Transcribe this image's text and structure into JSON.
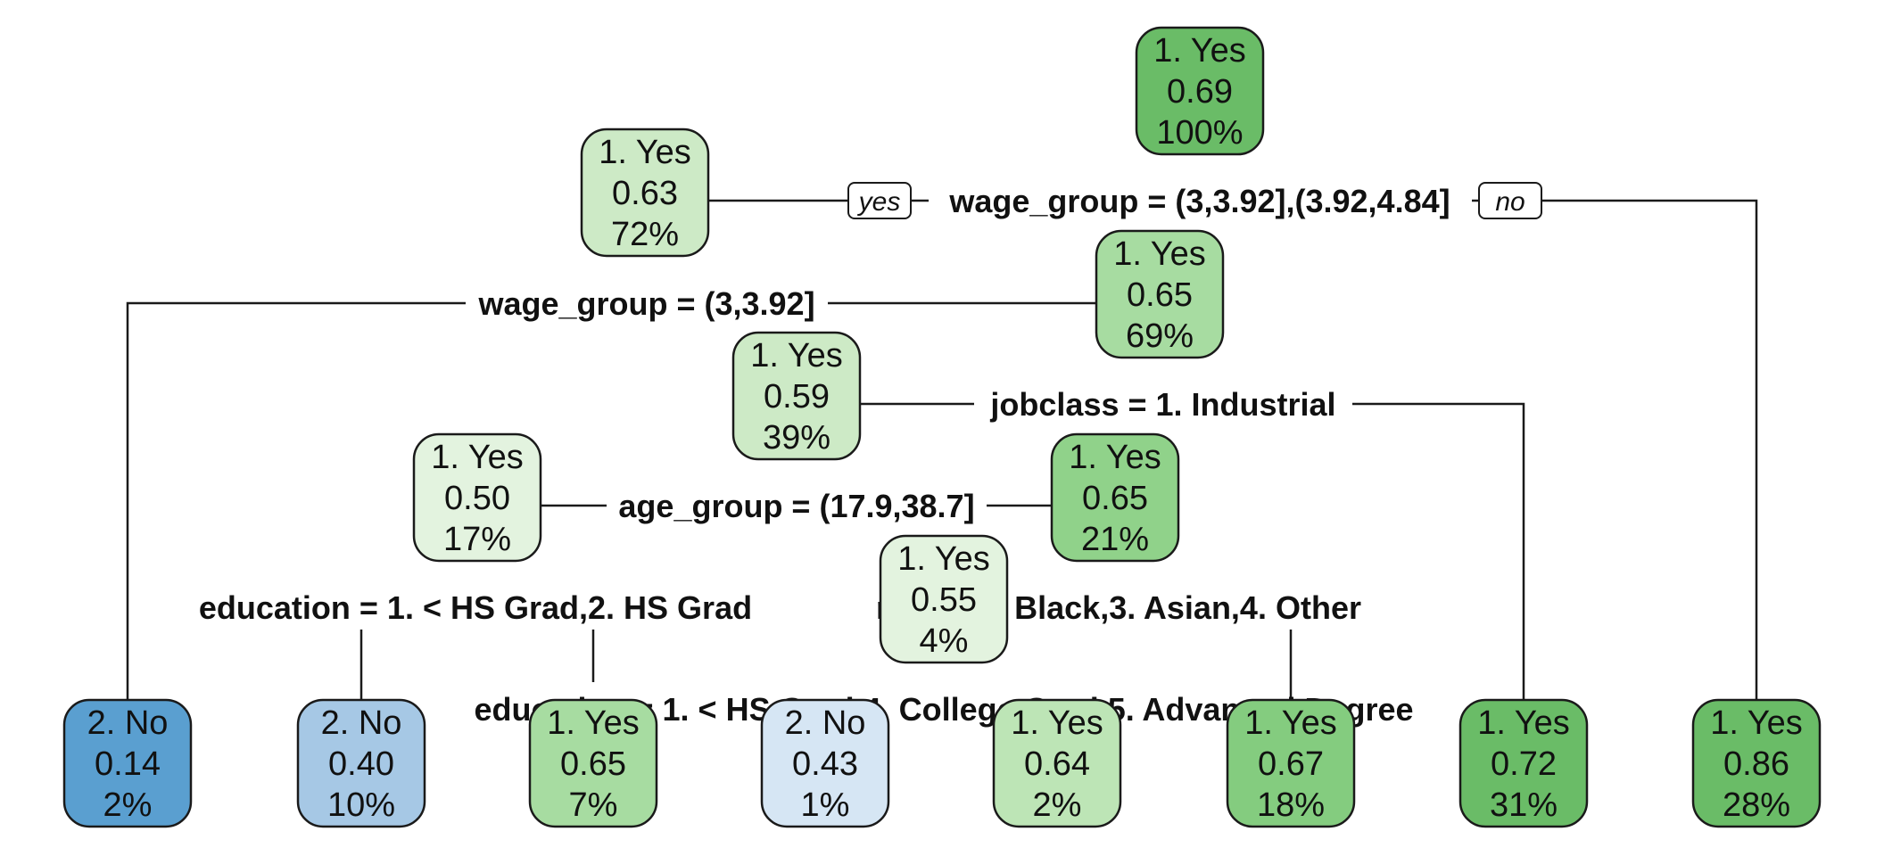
{
  "chart_data": {
    "type": "decision-tree",
    "branch_labels": {
      "left": "yes",
      "right": "no"
    },
    "nodes": [
      {
        "id": "root",
        "class": "1. Yes",
        "prob": "0.69",
        "pct": "100%",
        "fill": "#6abc67"
      },
      {
        "id": "n_wg1",
        "class": "1. Yes",
        "prob": "0.63",
        "pct": "72%",
        "fill": "#cdeac6"
      },
      {
        "id": "n_wg2",
        "class": "1. Yes",
        "prob": "0.65",
        "pct": "69%",
        "fill": "#a7dca1"
      },
      {
        "id": "n_job",
        "class": "1. Yes",
        "prob": "0.59",
        "pct": "39%",
        "fill": "#cdeac6"
      },
      {
        "id": "n_age",
        "class": "1. Yes",
        "prob": "0.50",
        "pct": "17%",
        "fill": "#e3f3df"
      },
      {
        "id": "n_age_r",
        "class": "1. Yes",
        "prob": "0.65",
        "pct": "21%",
        "fill": "#90d28a"
      },
      {
        "id": "n_race",
        "class": "1. Yes",
        "prob": "0.55",
        "pct": "4%",
        "fill": "#e3f3df"
      },
      {
        "id": "leaf1",
        "class": "2. No",
        "prob": "0.14",
        "pct": "2%",
        "fill": "#5a9fd0"
      },
      {
        "id": "leaf2",
        "class": "2. No",
        "prob": "0.40",
        "pct": "10%",
        "fill": "#a6c8e5"
      },
      {
        "id": "leaf3",
        "class": "1. Yes",
        "prob": "0.65",
        "pct": "7%",
        "fill": "#a7dca1"
      },
      {
        "id": "leaf4",
        "class": "2. No",
        "prob": "0.43",
        "pct": "1%",
        "fill": "#d6e6f4"
      },
      {
        "id": "leaf5",
        "class": "1. Yes",
        "prob": "0.64",
        "pct": "2%",
        "fill": "#bde5b6"
      },
      {
        "id": "leaf6",
        "class": "1. Yes",
        "prob": "0.67",
        "pct": "18%",
        "fill": "#84cc7f"
      },
      {
        "id": "leaf7",
        "class": "1. Yes",
        "prob": "0.72",
        "pct": "31%",
        "fill": "#6abc67"
      },
      {
        "id": "leaf8",
        "class": "1. Yes",
        "prob": "0.86",
        "pct": "28%",
        "fill": "#6abc67"
      }
    ],
    "splits": [
      {
        "id": "s_root",
        "label": "wage_group = (3,3.92],(3.92,4.84]"
      },
      {
        "id": "s_wg2",
        "label": "wage_group = (3,3.92]"
      },
      {
        "id": "s_job",
        "label": "jobclass = 1. Industrial"
      },
      {
        "id": "s_age",
        "label": "age_group = (17.9,38.7]"
      },
      {
        "id": "s_edu1",
        "label": "education = 1. < HS Grad,2. HS Grad"
      },
      {
        "id": "s_race",
        "label": "race = 2. Black,3. Asian,4. Other"
      },
      {
        "id": "s_edu2",
        "label": "education = 1. < HS Grad,4. College Grad,5. Advanced Degree"
      }
    ]
  }
}
